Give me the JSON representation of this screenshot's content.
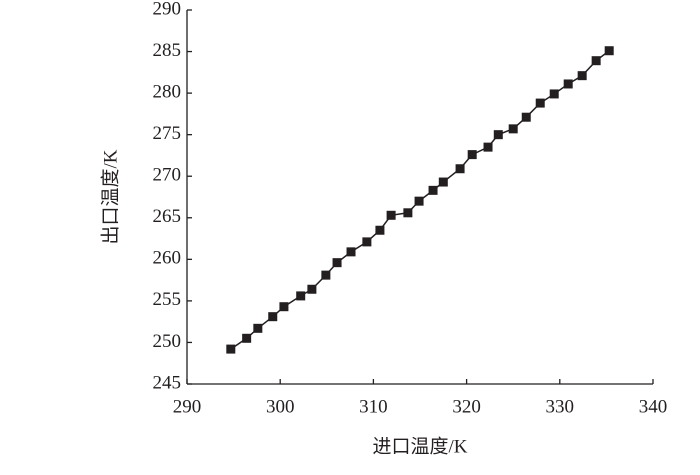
{
  "chart_data": {
    "type": "line",
    "xlabel": "进口温度/K",
    "ylabel": "出口温度/K",
    "x": [
      294.7,
      296.4,
      297.6,
      299.2,
      300.4,
      302.2,
      303.4,
      304.9,
      306.1,
      307.6,
      309.3,
      310.7,
      311.9,
      313.7,
      314.9,
      316.4,
      317.5,
      319.3,
      320.6,
      322.3,
      323.4,
      325.0,
      326.4,
      327.9,
      329.4,
      330.9,
      332.4,
      333.9,
      335.3
    ],
    "series": [
      {
        "color": "#231f20",
        "values": [
          249.2,
          250.5,
          251.7,
          253.1,
          254.3,
          255.6,
          256.4,
          258.1,
          259.6,
          260.9,
          262.1,
          263.5,
          265.3,
          265.6,
          267.0,
          268.3,
          269.3,
          270.9,
          272.6,
          273.5,
          275.0,
          275.7,
          277.1,
          278.8,
          279.9,
          281.1,
          282.1,
          283.9,
          285.1
        ]
      }
    ],
    "xlim": [
      290,
      340
    ],
    "xticks": [
      290,
      300,
      310,
      320,
      330,
      340
    ],
    "ylim": [
      245,
      290
    ],
    "yticks": [
      245,
      250,
      255,
      260,
      265,
      270,
      275,
      280,
      285,
      290
    ],
    "grid": false
  }
}
